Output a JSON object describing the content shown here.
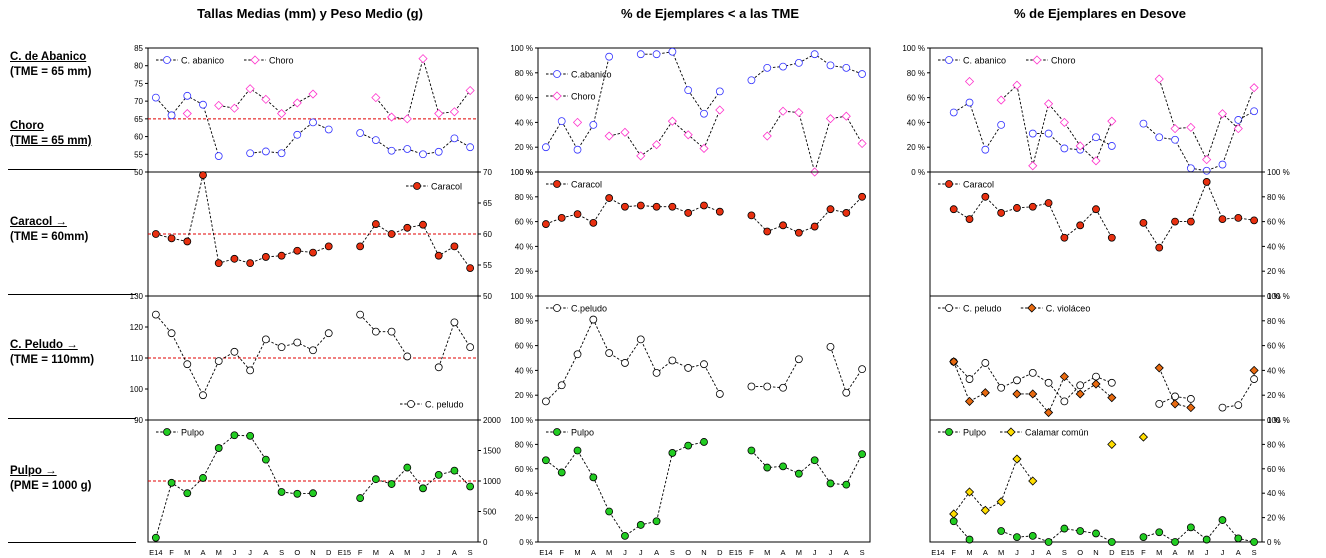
{
  "headers": [
    "Tallas Medias (mm) y Peso Medio (g)",
    "% de Ejemplares  < a las TME",
    "% de Ejemplares en Desove"
  ],
  "side_labels": [
    {
      "title": "C. de Abanico",
      "sub": "(TME = 65 mm)"
    },
    {
      "title": "Choro",
      "sub": "(TME = 65 mm)"
    },
    {
      "title": "Caracol  →",
      "sub": "(TME = 60mm)"
    },
    {
      "title": "C. Peludo  →",
      "sub": "(TME = 110mm)"
    },
    {
      "title": "Pulpo   →",
      "sub": "(PME = 1000 g)"
    }
  ],
  "months": [
    "E14",
    "F",
    "M",
    "A",
    "M",
    "J",
    "J",
    "A",
    "S",
    "O",
    "N",
    "D",
    "E15",
    "F",
    "M",
    "A",
    "M",
    "J",
    "J",
    "A",
    "S"
  ],
  "colors": {
    "abanico": "#3333ff",
    "choro": "#ff33cc",
    "caracol": "#e83010",
    "peludo": "#ffffff",
    "violaceo": "#e86a10",
    "pulpo": "#22cc22",
    "calamar": "#ffdd00",
    "ref": "#e00000"
  },
  "chart_data": [
    {
      "type": "line",
      "panel": "C. de Abanico / Choro - Tallas",
      "ylim": [
        50,
        85
      ],
      "yticks": [
        "50",
        "55",
        "60",
        "65",
        "70",
        "75",
        "80",
        "85"
      ],
      "axis": "left",
      "reference": 65,
      "legend": {
        "pos": "top-left"
      },
      "series": [
        {
          "name": "C. abanico",
          "marker": "circle",
          "color": "abanico",
          "values": [
            71,
            66,
            71.5,
            69,
            54.5,
            null,
            55.3,
            55.8,
            55.3,
            60.5,
            64,
            62,
            null,
            61,
            59,
            56,
            56.5,
            55,
            55.7,
            59.5,
            57
          ]
        },
        {
          "name": "Choro",
          "marker": "diamond",
          "color": "choro",
          "values": [
            null,
            null,
            66.5,
            null,
            68.8,
            68,
            73.5,
            70.5,
            66.5,
            69.5,
            72,
            null,
            null,
            null,
            71,
            65.5,
            65,
            82,
            66.5,
            67,
            73
          ]
        }
      ]
    },
    {
      "type": "line",
      "panel": "Caracol - Tallas",
      "ylim": [
        50,
        70
      ],
      "yticks": [
        "50",
        "55",
        "60",
        "65",
        "70"
      ],
      "axis": "right",
      "reference": 60,
      "legend": {
        "pos": "top-right"
      },
      "series": [
        {
          "name": "Caracol",
          "marker": "circle",
          "color": "caracol",
          "values": [
            60,
            59.3,
            58.8,
            69.5,
            55.3,
            56,
            55.3,
            56.3,
            56.5,
            57.3,
            57,
            58,
            null,
            58,
            61.6,
            60,
            61,
            61.5,
            56.5,
            58,
            54.5
          ]
        }
      ]
    },
    {
      "type": "line",
      "panel": "C. Peludo - Tallas",
      "ylim": [
        90,
        130
      ],
      "yticks": [
        "90",
        "100",
        "110",
        "120",
        "130"
      ],
      "axis": "left",
      "reference": 110,
      "legend": {
        "pos": "bottom-right"
      },
      "series": [
        {
          "name": "C. peludo",
          "marker": "circle",
          "color": "peludo",
          "values": [
            124,
            118,
            108,
            98,
            109,
            112,
            106,
            116,
            113.5,
            115,
            112.5,
            118,
            null,
            124,
            118.5,
            118.5,
            110.5,
            null,
            107,
            121.5,
            113.5
          ]
        }
      ]
    },
    {
      "type": "line",
      "panel": "Pulpo - Peso",
      "ylim": [
        0,
        2000
      ],
      "yticks": [
        "0",
        "500",
        "1000",
        "1500",
        "2000"
      ],
      "axis": "right",
      "reference": 1000,
      "legend": {
        "pos": "top-left"
      },
      "series": [
        {
          "name": "Pulpo",
          "marker": "circle",
          "color": "pulpo",
          "values": [
            70,
            970,
            800,
            1050,
            1540,
            1750,
            1740,
            1350,
            820,
            790,
            800,
            null,
            null,
            720,
            1030,
            950,
            1220,
            880,
            1100,
            1170,
            910
          ]
        }
      ]
    },
    {
      "type": "line",
      "panel": "% < TME C. de Abanico / Choro",
      "ylim": [
        0,
        100
      ],
      "yticks": [
        "0 %",
        "20 %",
        "40 %",
        "60 %",
        "80 %",
        "100 %"
      ],
      "axis": "left",
      "legend": {
        "pos": "left",
        "stacked": true
      },
      "series": [
        {
          "name": "C.abanico",
          "marker": "circle",
          "color": "abanico",
          "values": [
            20,
            41,
            18,
            38,
            93,
            null,
            95,
            95,
            97,
            66,
            47,
            65,
            null,
            74,
            84,
            85,
            88,
            95,
            86,
            84,
            79
          ]
        },
        {
          "name": "Choro",
          "marker": "diamond",
          "color": "choro",
          "values": [
            null,
            null,
            40,
            null,
            29,
            32,
            13,
            22,
            41,
            30,
            19,
            50,
            null,
            null,
            29,
            49,
            48,
            0,
            43,
            45,
            23
          ]
        }
      ]
    },
    {
      "type": "line",
      "panel": "% < TME Caracol",
      "ylim": [
        0,
        100
      ],
      "yticks": [
        "",
        "20 %",
        "40 %",
        "60 %",
        "80 %",
        "100 %"
      ],
      "axis": "left",
      "legend": {
        "pos": "top-left"
      },
      "series": [
        {
          "name": "Caracol",
          "marker": "circle",
          "color": "caracol",
          "values": [
            58,
            63,
            66,
            59,
            79,
            72,
            73,
            72,
            72,
            67,
            73,
            68,
            null,
            65,
            52,
            57,
            51,
            56,
            70,
            67,
            80
          ]
        }
      ]
    },
    {
      "type": "line",
      "panel": "% < TME C. Peludo",
      "ylim": [
        0,
        100
      ],
      "yticks": [
        "",
        "20 %",
        "40 %",
        "60 %",
        "80 %",
        "100 %"
      ],
      "axis": "left",
      "legend": {
        "pos": "top-left"
      },
      "series": [
        {
          "name": "C.peludo",
          "marker": "circle",
          "color": "peludo",
          "values": [
            15,
            28,
            53,
            81,
            54,
            46,
            65,
            38,
            48,
            42,
            45,
            21,
            null,
            27,
            27,
            26,
            49,
            null,
            59,
            22,
            41
          ]
        }
      ]
    },
    {
      "type": "line",
      "panel": "% < TME Pulpo",
      "ylim": [
        0,
        100
      ],
      "yticks": [
        "0 %",
        "20 %",
        "40 %",
        "60 %",
        "80 %",
        "100 %"
      ],
      "axis": "left",
      "legend": {
        "pos": "top-left"
      },
      "series": [
        {
          "name": "Pulpo",
          "marker": "circle",
          "color": "pulpo",
          "values": [
            67,
            57,
            75,
            53,
            25,
            5,
            14,
            17,
            73,
            79,
            82,
            null,
            null,
            75,
            61,
            62,
            56,
            67,
            48,
            47,
            72
          ]
        }
      ]
    },
    {
      "type": "line",
      "panel": "Desove C. de Abanico / Choro",
      "ylim": [
        0,
        100
      ],
      "yticks": [
        "0 %",
        "20 %",
        "40 %",
        "60 %",
        "80 %",
        "100 %"
      ],
      "axis": "left",
      "legend": {
        "pos": "top-left"
      },
      "series": [
        {
          "name": "C. abanico",
          "marker": "circle",
          "color": "abanico",
          "values": [
            null,
            48,
            56,
            18,
            38,
            null,
            31,
            31,
            19,
            18,
            28,
            21,
            null,
            39,
            28,
            26,
            3,
            1,
            6,
            42,
            49
          ]
        },
        {
          "name": "Choro",
          "marker": "diamond",
          "color": "choro",
          "values": [
            null,
            null,
            73,
            null,
            58,
            70,
            5,
            55,
            40,
            21,
            9,
            41,
            null,
            null,
            75,
            35,
            36,
            10,
            47,
            35,
            68
          ]
        }
      ]
    },
    {
      "type": "line",
      "panel": "Desove Caracol",
      "ylim": [
        0,
        100
      ],
      "yticks": [
        "0 %",
        "20 %",
        "40 %",
        "60 %",
        "80 %",
        "100 %"
      ],
      "axis": "right",
      "legend": {
        "pos": "top-left"
      },
      "series": [
        {
          "name": "Caracol",
          "marker": "circle",
          "color": "caracol",
          "values": [
            null,
            70,
            62,
            80,
            67,
            71,
            72,
            75,
            47,
            57,
            70,
            47,
            null,
            59,
            39,
            60,
            60,
            92,
            62,
            63,
            61
          ]
        }
      ]
    },
    {
      "type": "line",
      "panel": "Desove C. Peludo / C. violaceo",
      "ylim": [
        0,
        100
      ],
      "yticks": [
        "0 %",
        "20 %",
        "40 %",
        "60 %",
        "80 %",
        "100 %"
      ],
      "axis": "right",
      "legend": {
        "pos": "top-left"
      },
      "series": [
        {
          "name": "C. peludo",
          "marker": "circle",
          "color": "peludo",
          "values": [
            null,
            47,
            33,
            46,
            26,
            32,
            38,
            30,
            15,
            28,
            35,
            30,
            null,
            null,
            13,
            19,
            17,
            null,
            10,
            12,
            33
          ]
        },
        {
          "name": "C. violáceo",
          "marker": "diamond",
          "color": "violaceo",
          "values": [
            null,
            47,
            15,
            22,
            null,
            21,
            21,
            6,
            35,
            21,
            29,
            18,
            null,
            null,
            42,
            13,
            10,
            null,
            null,
            null,
            40
          ]
        }
      ]
    },
    {
      "type": "line",
      "panel": "Desove Pulpo / Calamar",
      "ylim": [
        0,
        100
      ],
      "yticks": [
        "0 %",
        "20 %",
        "40 %",
        "60 %",
        "80 %",
        "100 %"
      ],
      "axis": "right",
      "legend": {
        "pos": "top-left"
      },
      "series": [
        {
          "name": "Pulpo",
          "marker": "circle",
          "color": "pulpo",
          "values": [
            null,
            17,
            2,
            null,
            9,
            4,
            5,
            0,
            11,
            9,
            7,
            0,
            null,
            4,
            8,
            0,
            12,
            2,
            18,
            3,
            0
          ]
        },
        {
          "name": "Calamar común",
          "marker": "diamond",
          "color": "calamar",
          "values": [
            null,
            23,
            41,
            26,
            33,
            68,
            50,
            null,
            null,
            null,
            null,
            80,
            null,
            86,
            null,
            null,
            null,
            null,
            null,
            null,
            null
          ]
        }
      ]
    }
  ]
}
